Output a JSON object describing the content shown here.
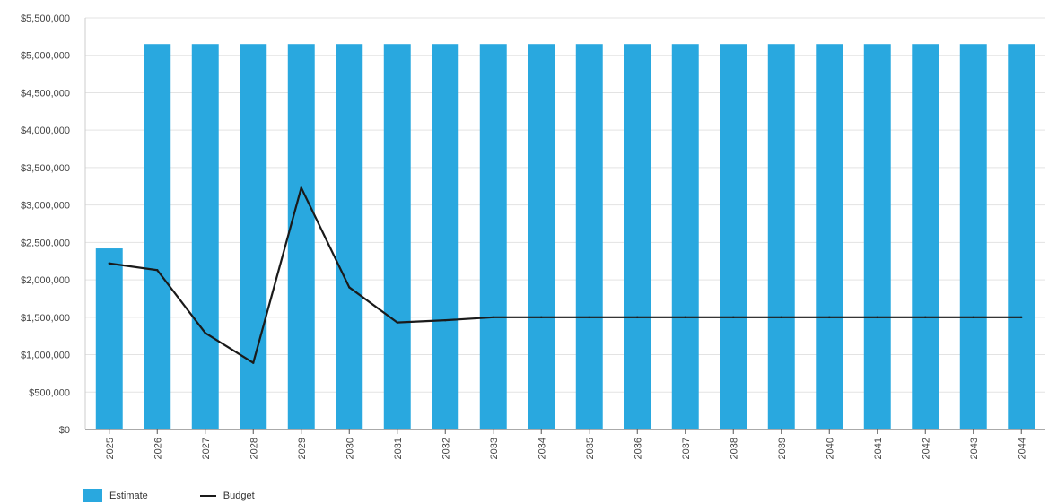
{
  "chart_data": {
    "type": "bar",
    "categories": [
      "2025",
      "2026",
      "2027",
      "2028",
      "2029",
      "2030",
      "2031",
      "2032",
      "2033",
      "2034",
      "2035",
      "2036",
      "2037",
      "2038",
      "2039",
      "2040",
      "2041",
      "2042",
      "2043",
      "2044"
    ],
    "series": [
      {
        "name": "Estimate",
        "kind": "bar",
        "color": "#29a8df",
        "values": [
          2420000,
          5150000,
          5150000,
          5150000,
          5150000,
          5150000,
          5150000,
          5150000,
          5150000,
          5150000,
          5150000,
          5150000,
          5150000,
          5150000,
          5150000,
          5150000,
          5150000,
          5150000,
          5150000,
          5150000
        ]
      },
      {
        "name": "Budget",
        "kind": "line",
        "color": "#1a1a1a",
        "values": [
          2220000,
          2130000,
          1290000,
          890000,
          3230000,
          1900000,
          1430000,
          1460000,
          1500000,
          1500000,
          1500000,
          1500000,
          1500000,
          1500000,
          1500000,
          1500000,
          1500000,
          1500000,
          1500000,
          1500000
        ]
      }
    ],
    "y_ticks": [
      "$0",
      "$500,000",
      "$1,000,000",
      "$1,500,000",
      "$2,000,000",
      "$2,500,000",
      "$3,000,000",
      "$3,500,000",
      "$4,000,000",
      "$4,500,000",
      "$5,000,000",
      "$5,500,000"
    ],
    "ylim": [
      0,
      5500000
    ],
    "grid": true,
    "legend_position": "bottom-left"
  },
  "legend": {
    "estimate_label": "Estimate",
    "budget_label": "Budget",
    "estimate_color": "#29a8df",
    "budget_color": "#1a1a1a"
  }
}
